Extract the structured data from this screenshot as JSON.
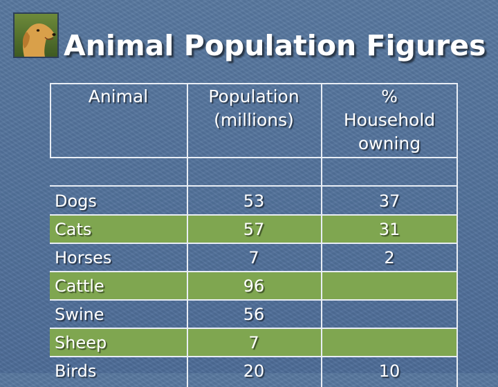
{
  "title": "Animal Population Figures",
  "logo": {
    "icon": "golden-retriever-photo"
  },
  "colors": {
    "background": "#4f6f9a",
    "row_highlight": "#7fa650",
    "text": "#ffffff"
  },
  "table": {
    "headers": [
      "Animal",
      "Population\n(millions)",
      "%\nHousehold\nowning"
    ],
    "rows": [
      {
        "animal": "Dogs",
        "population": "53",
        "household": "37",
        "highlight": false
      },
      {
        "animal": "Cats",
        "population": "57",
        "household": "31",
        "highlight": true
      },
      {
        "animal": "Horses",
        "population": "7",
        "household": "2",
        "highlight": false
      },
      {
        "animal": "Cattle",
        "population": "96",
        "household": "",
        "highlight": true
      },
      {
        "animal": "Swine",
        "population": "56",
        "household": "",
        "highlight": false
      },
      {
        "animal": "Sheep",
        "population": "7",
        "household": "",
        "highlight": true
      },
      {
        "animal": "Birds",
        "population": "20",
        "household": "10",
        "highlight": false
      }
    ]
  }
}
